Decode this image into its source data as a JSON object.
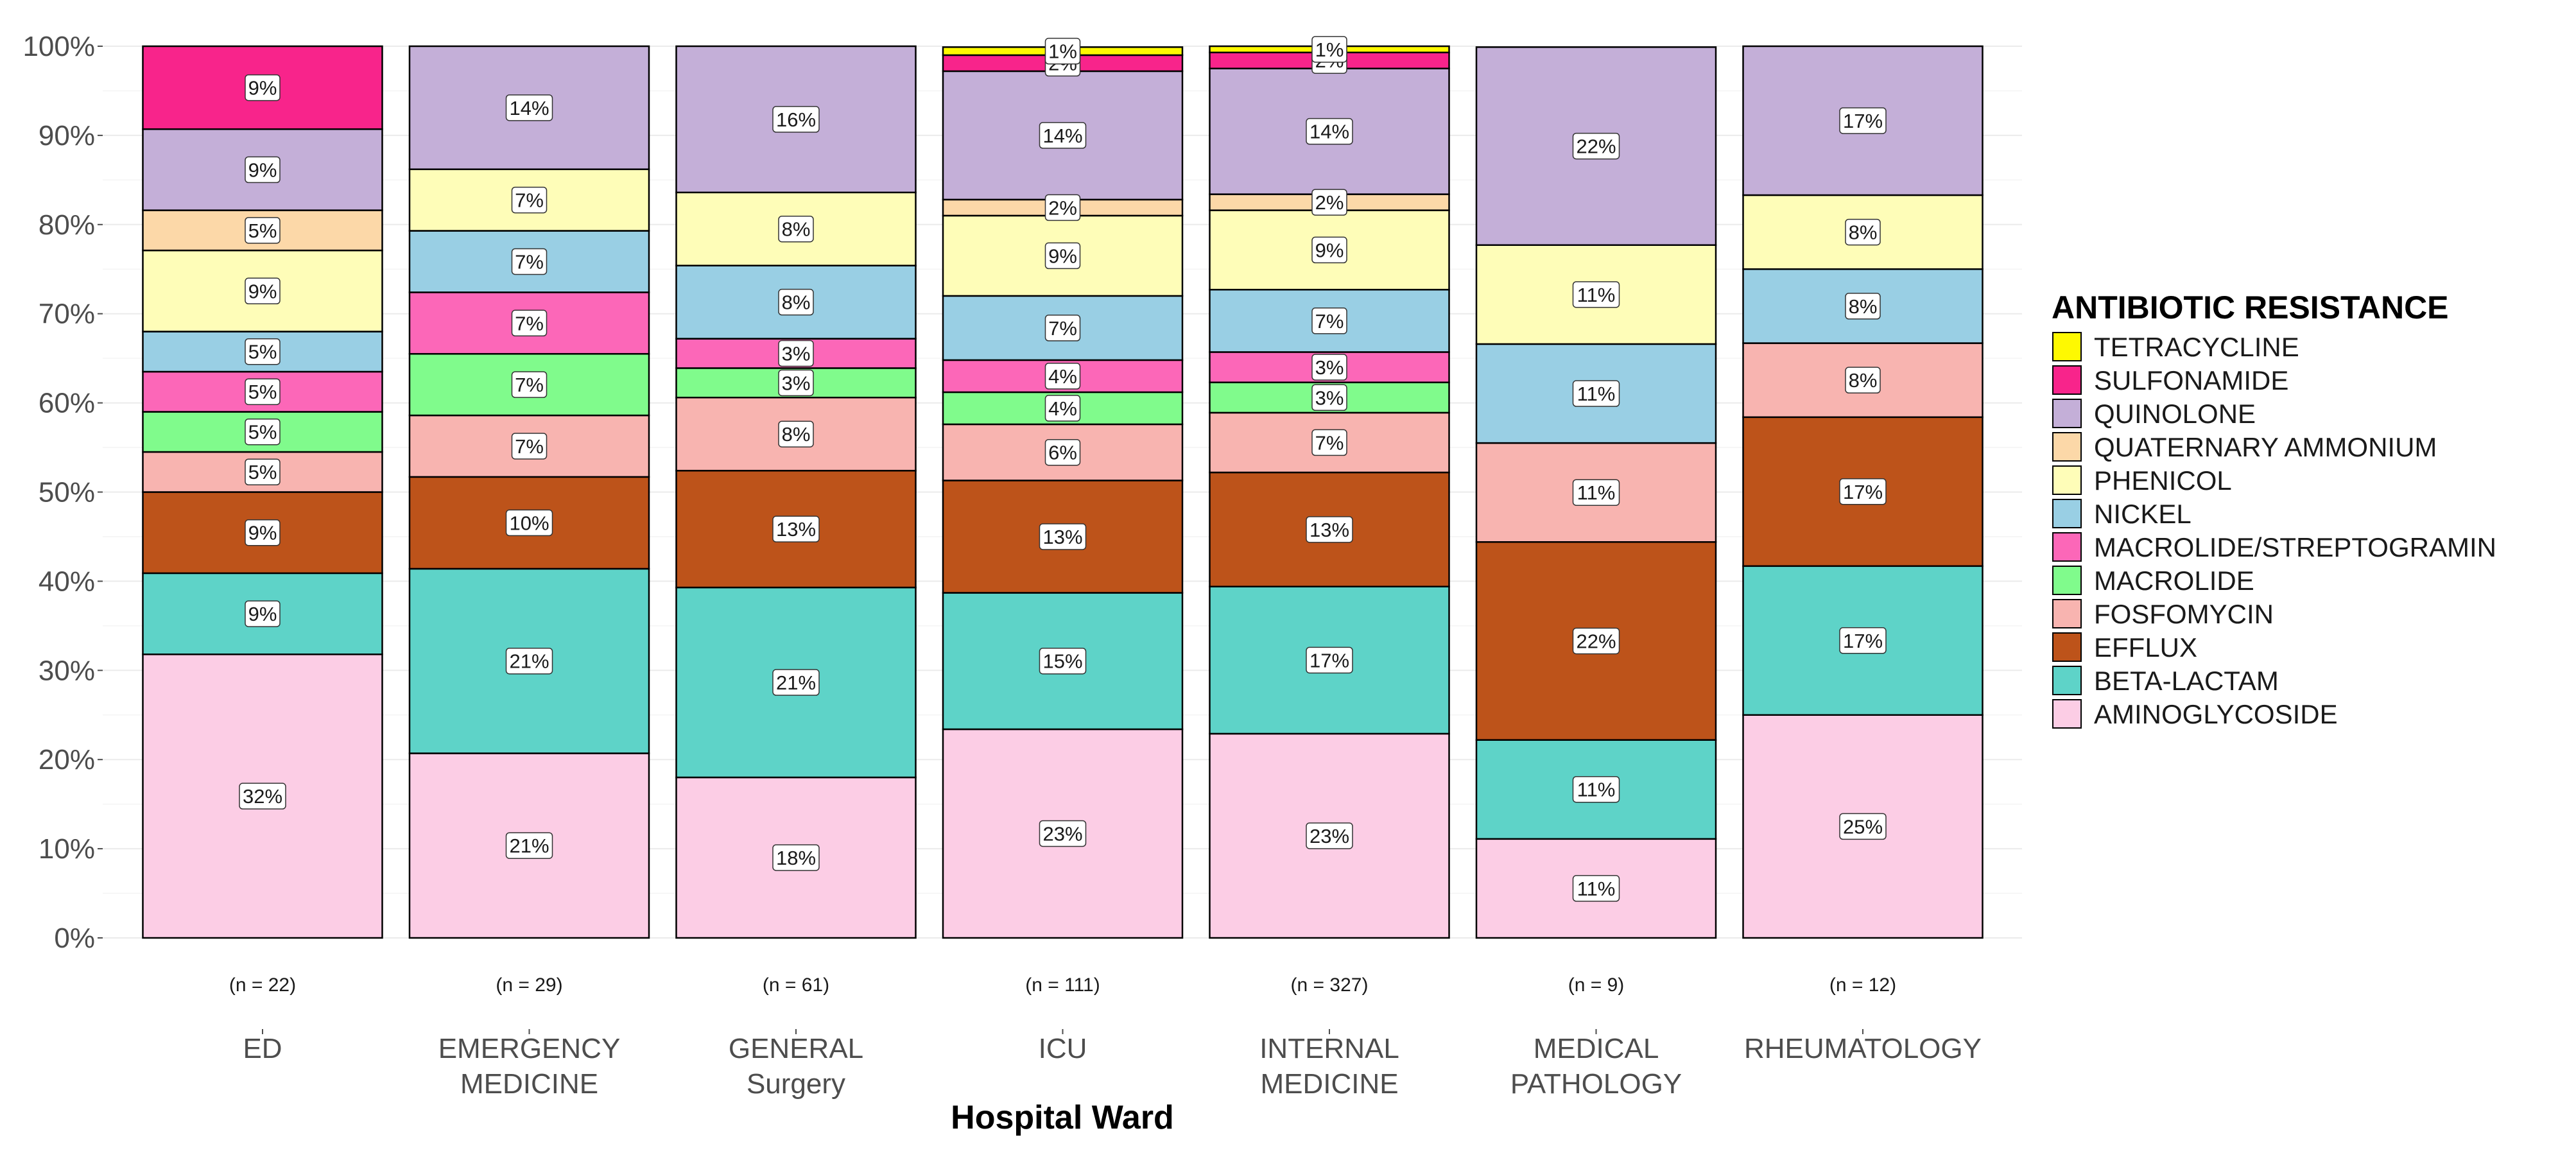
{
  "chart_data": {
    "type": "bar",
    "stacked": true,
    "normalized": true,
    "xlabel": "Hospital Ward",
    "ylabel": "",
    "ylim": [
      0,
      100
    ],
    "y_ticks": [
      "0%",
      "10%",
      "20%",
      "30%",
      "40%",
      "50%",
      "60%",
      "70%",
      "80%",
      "90%",
      "100%"
    ],
    "legend_title": "ANTIBIOTIC RESISTANCE",
    "legend_position": "right",
    "categories": [
      [
        "ED"
      ],
      [
        "EMERGENCY",
        "MEDICINE"
      ],
      [
        "GENERAL",
        "Surgery"
      ],
      [
        "ICU"
      ],
      [
        "INTERNAL",
        "MEDICINE"
      ],
      [
        "MEDICAL",
        "PATHOLOGY"
      ],
      [
        "RHEUMATOLOGY"
      ]
    ],
    "counts": [
      "(n = 22)",
      "(n = 29)",
      "(n = 61)",
      "(n = 111)",
      "(n = 327)",
      "(n = 9)",
      "(n = 12)"
    ],
    "series": [
      {
        "name": "AMINOGLYCOSIDE",
        "color": "#FCCDE5",
        "values": [
          31.8,
          20.7,
          18.0,
          23.4,
          22.9,
          11.1,
          25.0
        ],
        "labels": [
          "32%",
          "21%",
          "18%",
          "23%",
          "23%",
          "11%",
          "25%"
        ]
      },
      {
        "name": "BETA-LACTAM",
        "color": "#5ED3C8",
        "values": [
          9.1,
          20.7,
          21.3,
          15.3,
          16.5,
          11.1,
          16.7
        ],
        "labels": [
          "9%",
          "21%",
          "21%",
          "15%",
          "17%",
          "11%",
          "17%"
        ]
      },
      {
        "name": "EFFLUX",
        "color": "#BD531A",
        "values": [
          9.1,
          10.3,
          13.1,
          12.6,
          12.8,
          22.2,
          16.7
        ],
        "labels": [
          "9%",
          "10%",
          "13%",
          "13%",
          "13%",
          "22%",
          "17%"
        ]
      },
      {
        "name": "FOSFOMYCIN",
        "color": "#F8B4B0",
        "values": [
          4.5,
          6.9,
          8.2,
          6.3,
          6.7,
          11.1,
          8.3
        ],
        "labels": [
          "5%",
          "7%",
          "8%",
          "6%",
          "7%",
          "11%",
          "8%"
        ]
      },
      {
        "name": "MACROLIDE",
        "color": "#80FB8C",
        "values": [
          4.5,
          6.9,
          3.3,
          3.6,
          3.4,
          0,
          0
        ],
        "labels": [
          "5%",
          "7%",
          "3%",
          "4%",
          "3%",
          "",
          ""
        ]
      },
      {
        "name": "MACROLIDE/STREPTOGRAMIN",
        "color": "#FC67B8",
        "values": [
          4.5,
          6.9,
          3.3,
          3.6,
          3.4,
          0,
          0
        ],
        "labels": [
          "5%",
          "7%",
          "3%",
          "4%",
          "3%",
          "",
          ""
        ]
      },
      {
        "name": "NICKEL",
        "color": "#99CFE4",
        "values": [
          4.5,
          6.9,
          8.2,
          7.2,
          7.0,
          11.1,
          8.3
        ],
        "labels": [
          "5%",
          "7%",
          "8%",
          "7%",
          "7%",
          "11%",
          "8%"
        ]
      },
      {
        "name": "PHENICOL",
        "color": "#FEFDB8",
        "values": [
          9.1,
          6.9,
          8.2,
          9.0,
          8.9,
          11.1,
          8.3
        ],
        "labels": [
          "9%",
          "7%",
          "8%",
          "9%",
          "9%",
          "11%",
          "8%"
        ]
      },
      {
        "name": "QUATERNARY AMMONIUM",
        "color": "#FCD8A8",
        "values": [
          4.5,
          0,
          0,
          1.8,
          1.8,
          0,
          0
        ],
        "labels": [
          "5%",
          "",
          "",
          "2%",
          "2%",
          "",
          ""
        ]
      },
      {
        "name": "QUINOLONE",
        "color": "#C4AFD8",
        "values": [
          9.1,
          13.8,
          16.4,
          14.4,
          14.1,
          22.2,
          16.7
        ],
        "labels": [
          "9%",
          "14%",
          "16%",
          "14%",
          "14%",
          "22%",
          "17%"
        ]
      },
      {
        "name": "SULFONAMIDE",
        "color": "#F8248B",
        "values": [
          9.3,
          0,
          0,
          1.8,
          1.8,
          0,
          0
        ],
        "labels": [
          "9%",
          "",
          "",
          "2%",
          "2%",
          "",
          ""
        ]
      },
      {
        "name": "TETRACYCLINE",
        "color": "#FEF901",
        "values": [
          0,
          0,
          0,
          0.9,
          0.7,
          0,
          0
        ],
        "labels": [
          "",
          "",
          "",
          "1%",
          "1%",
          "",
          ""
        ]
      }
    ]
  }
}
